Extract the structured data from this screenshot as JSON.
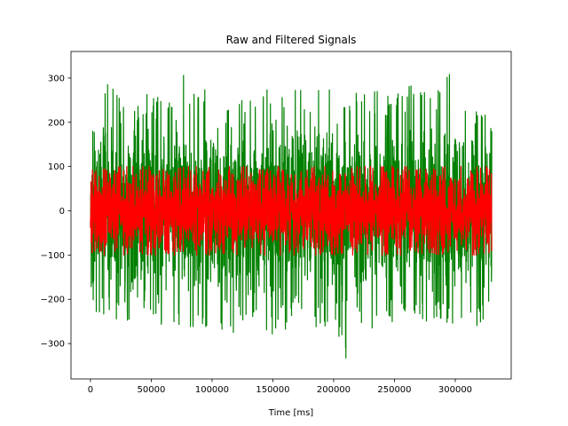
{
  "chart_data": {
    "type": "line",
    "title": "Raw and Filtered Signals",
    "xlabel": "Time [ms]",
    "ylabel": "",
    "xlim": [
      -16000,
      346000
    ],
    "ylim": [
      -380,
      360
    ],
    "x_ticks": [
      0,
      50000,
      100000,
      150000,
      200000,
      250000,
      300000
    ],
    "x_tick_labels": [
      "0",
      "50000",
      "100000",
      "150000",
      "200000",
      "250000",
      "300000"
    ],
    "y_ticks": [
      -300,
      -200,
      -100,
      0,
      100,
      200,
      300
    ],
    "y_tick_labels": [
      "−300",
      "−200",
      "−100",
      "0",
      "100",
      "200",
      "300"
    ],
    "grid": false,
    "legend": "none",
    "x_range": [
      0,
      330000
    ],
    "series": [
      {
        "color": "#008000",
        "typical_range": [
          -170,
          175
        ],
        "envelope_x": [
          0,
          5000,
          10000,
          20000,
          30000,
          40000,
          50000,
          60000,
          70000,
          80000,
          90000,
          100000,
          110000,
          120000,
          130000,
          140000,
          150000,
          160000,
          170000,
          180000,
          190000,
          200000,
          210000,
          220000,
          230000,
          240000,
          250000,
          260000,
          270000,
          280000,
          290000,
          300000,
          310000,
          320000,
          330000
        ],
        "envelope_max": [
          185,
          250,
          320,
          270,
          290,
          250,
          290,
          270,
          295,
          325,
          270,
          290,
          260,
          270,
          265,
          260,
          290,
          255,
          280,
          260,
          280,
          270,
          285,
          275,
          265,
          290,
          265,
          280,
          290,
          270,
          300,
          320,
          280,
          260,
          180
        ],
        "envelope_min": [
          -160,
          -250,
          -240,
          -245,
          -250,
          -240,
          -230,
          -270,
          -260,
          -300,
          -260,
          -280,
          -300,
          -270,
          -260,
          -275,
          -280,
          -280,
          -260,
          -285,
          -250,
          -290,
          -345,
          -270,
          -270,
          -260,
          -255,
          -270,
          -255,
          -260,
          -245,
          -280,
          -260,
          -260,
          -240
        ]
      },
      {
        "color": "#ff0000",
        "typical_range": [
          -80,
          80
        ],
        "envelope_x": [
          0,
          330000
        ],
        "envelope_max": [
          100,
          100
        ],
        "envelope_min": [
          -100,
          -100
        ]
      }
    ]
  }
}
